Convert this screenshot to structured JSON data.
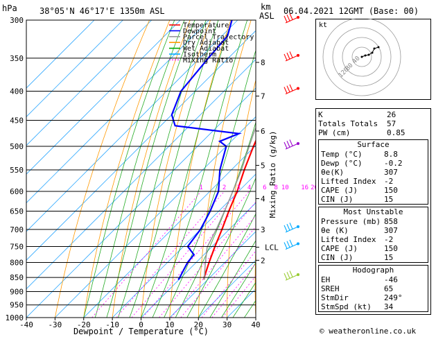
{
  "header": {
    "hpa_unit": "hPa",
    "location": "38°05'N  46°17'E  1350m  ASL",
    "km_unit": "km",
    "asl_unit": "ASL",
    "datetime": "06.04.2021  12GMT  (Base: 00)"
  },
  "footer": {
    "credit": "© weatheronline.co.uk"
  },
  "chart_data": {
    "type": "line",
    "xlabel": "Dewpoint / Temperature (°C)",
    "y2label": "Mixing Ratio (g/kg)",
    "xlim": [
      -40,
      40
    ],
    "ylim": [
      1000,
      300
    ],
    "x_ticks": [
      -40,
      -30,
      -20,
      -10,
      0,
      10,
      20,
      30,
      40
    ],
    "pressure_ticks": [
      300,
      350,
      400,
      450,
      500,
      550,
      600,
      650,
      700,
      750,
      800,
      850,
      900,
      950,
      1000
    ],
    "km_ticks": [
      {
        "label": "8",
        "p": 356
      },
      {
        "label": "7",
        "p": 408
      },
      {
        "label": "6",
        "p": 470
      },
      {
        "label": "5",
        "p": 540
      },
      {
        "label": "4",
        "p": 618
      },
      {
        "label": "3",
        "p": 700
      },
      {
        "label": "2",
        "p": 793
      }
    ],
    "lcl": {
      "label": "LCL",
      "p": 752
    },
    "mixing_ratio_labels": [
      "1",
      "2",
      "3",
      "4",
      "6",
      "8",
      "10",
      "16",
      "20",
      "25"
    ],
    "mixing_ratio_values": [
      1,
      2,
      3,
      4,
      6,
      8,
      10,
      16,
      20,
      25
    ],
    "legend": {
      "placement": "top-right",
      "entries": [
        {
          "name": "Temperature",
          "color": "#ff0000"
        },
        {
          "name": "Dewpoint",
          "color": "#0000ff"
        },
        {
          "name": "Parcel Trajectory",
          "color": "#999999"
        },
        {
          "name": "Dry Adiabat",
          "color": "#ff9900"
        },
        {
          "name": "Wet Adiabat",
          "color": "#00aa00"
        },
        {
          "name": "Isotherm",
          "color": "#00aaff"
        },
        {
          "name": "Mixing Ratio",
          "color": "#ff00ff"
        }
      ]
    },
    "series": [
      {
        "name": "Temperature",
        "color": "#ff0000",
        "points": [
          [
            858,
            8.8
          ],
          [
            850,
            8.0
          ],
          [
            800,
            4.5
          ],
          [
            750,
            1.0
          ],
          [
            700,
            -2.5
          ],
          [
            650,
            -6.5
          ],
          [
            600,
            -10.5
          ],
          [
            550,
            -15.5
          ],
          [
            500,
            -20.5
          ],
          [
            470,
            -23.5
          ],
          [
            450,
            -24.0
          ],
          [
            400,
            -29.5
          ],
          [
            350,
            -35.5
          ],
          [
            300,
            -42.5
          ]
        ]
      },
      {
        "name": "Dewpoint",
        "color": "#0000ff",
        "points": [
          [
            858,
            -0.2
          ],
          [
            850,
            -0.5
          ],
          [
            800,
            -3.0
          ],
          [
            775,
            -3.5
          ],
          [
            750,
            -8.5
          ],
          [
            700,
            -10.0
          ],
          [
            650,
            -13.0
          ],
          [
            600,
            -17.0
          ],
          [
            550,
            -24.0
          ],
          [
            500,
            -30.0
          ],
          [
            490,
            -34.0
          ],
          [
            475,
            -30.0
          ],
          [
            460,
            -55.0
          ],
          [
            440,
            -60.0
          ],
          [
            400,
            -65.0
          ],
          [
            350,
            -67.0
          ],
          [
            320,
            -68.0
          ],
          [
            300,
            -72.0
          ]
        ]
      },
      {
        "name": "Parcel Trajectory",
        "color": "#999999",
        "points": [
          [
            858,
            8.8
          ],
          [
            800,
            3.2
          ],
          [
            752,
            -1.5
          ],
          [
            700,
            -4.5
          ],
          [
            650,
            -8.0
          ],
          [
            600,
            -12.0
          ],
          [
            550,
            -16.5
          ],
          [
            500,
            -22.0
          ],
          [
            470,
            -25.5
          ],
          [
            450,
            -27.5
          ],
          [
            400,
            -34.0
          ],
          [
            350,
            -41.5
          ],
          [
            300,
            -50.0
          ]
        ]
      }
    ],
    "wind_barbs": [
      {
        "p": 300,
        "color": "#ff0000"
      },
      {
        "p": 350,
        "color": "#ff0000"
      },
      {
        "p": 400,
        "color": "#ff0000"
      },
      {
        "p": 500,
        "color": "#9900cc"
      },
      {
        "p": 700,
        "color": "#00aaff"
      },
      {
        "p": 750,
        "color": "#00aaff"
      },
      {
        "p": 850,
        "color": "#99cc33"
      }
    ]
  },
  "hodograph": {
    "unit": "kt",
    "ring_labels": [
      "120",
      "80",
      "40"
    ],
    "points": [
      [
        0,
        0
      ],
      [
        5,
        2
      ],
      [
        10,
        3
      ],
      [
        15,
        6
      ],
      [
        18,
        12
      ],
      [
        24,
        14
      ]
    ]
  },
  "indices": {
    "rows": [
      {
        "label": "K",
        "value": "26"
      },
      {
        "label": "Totals Totals",
        "value": "57"
      },
      {
        "label": "PW (cm)",
        "value": "0.85"
      }
    ]
  },
  "surface": {
    "title": "Surface",
    "rows": [
      {
        "label": "Temp (°C)",
        "value": "8.8"
      },
      {
        "label": "Dewp (°C)",
        "value": "-0.2"
      },
      {
        "label": "θe(K)",
        "value": "307"
      },
      {
        "label": "Lifted Index",
        "value": "-2"
      },
      {
        "label": "CAPE (J)",
        "value": "150"
      },
      {
        "label": "CIN (J)",
        "value": "15"
      }
    ]
  },
  "most_unstable": {
    "title": "Most Unstable",
    "rows": [
      {
        "label": "Pressure (mb)",
        "value": "858"
      },
      {
        "label": "θe (K)",
        "value": "307"
      },
      {
        "label": "Lifted Index",
        "value": "-2"
      },
      {
        "label": "CAPE (J)",
        "value": "150"
      },
      {
        "label": "CIN (J)",
        "value": "15"
      }
    ]
  },
  "hodograph_table": {
    "title": "Hodograph",
    "rows": [
      {
        "label": "EH",
        "value": "-46"
      },
      {
        "label": "SREH",
        "value": "65"
      },
      {
        "label": "StmDir",
        "value": "249°"
      },
      {
        "label": "StmSpd (kt)",
        "value": "34"
      }
    ]
  }
}
